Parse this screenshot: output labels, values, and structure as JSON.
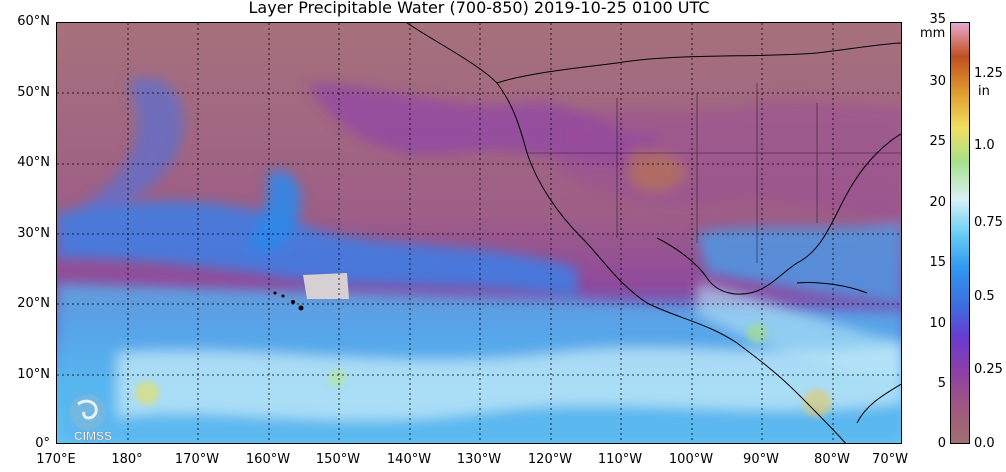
{
  "title": "Layer Precipitable Water (700-850)  2019-10-25 0100 UTC",
  "lat_labels": [
    "60°N",
    "50°N",
    "40°N",
    "30°N",
    "20°N",
    "10°N",
    "0°"
  ],
  "lon_labels": [
    "170°E",
    "180°",
    "170°W",
    "160°W",
    "150°W",
    "140°W",
    "130°W",
    "120°W",
    "110°W",
    "100°W",
    "90°W",
    "80°W",
    "70°W"
  ],
  "colorbar": {
    "mm_unit": "mm",
    "in_unit": "in",
    "mm_ticks": [
      "35",
      "30",
      "25",
      "20",
      "15",
      "10",
      "5",
      "0"
    ],
    "in_ticks": [
      "1.25",
      "1.0",
      "0.75",
      "0.5",
      "0.25",
      "0.0"
    ],
    "colors": [
      "#a07070",
      "#a05a80",
      "#8e3fa8",
      "#6a3ad0",
      "#3b6fe0",
      "#2f9af0",
      "#6ccff5",
      "#d8f0f8",
      "#a8e08a",
      "#f0e060",
      "#e0a030",
      "#c05020",
      "#e8a8d0"
    ]
  },
  "logo_text": "CIMSS",
  "colors": {
    "dry": "#a27081",
    "moist_purple": "#8a3aa8",
    "blue": "#2f8ae8",
    "light_blue": "#9ad8f4",
    "land_line": "#000000"
  }
}
